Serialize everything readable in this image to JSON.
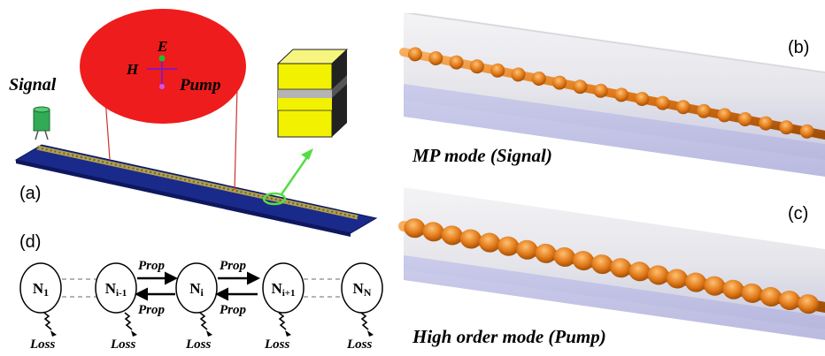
{
  "panel_a": {
    "label": "(a)",
    "signal_label": "Signal",
    "inset": {
      "e_label": "E",
      "h_label": "H",
      "pump_label": "Pump"
    }
  },
  "panel_b": {
    "label": "(b)",
    "caption": "MP mode (Signal)"
  },
  "panel_c": {
    "label": "(c)",
    "caption": "High order mode (Pump)"
  },
  "panel_d": {
    "label": "(d)",
    "prop_label": "Prop",
    "loss_label": "Loss",
    "nodes": [
      {
        "main": "N",
        "sub": "1"
      },
      {
        "main": "N",
        "sub": "i-1"
      },
      {
        "main": "N",
        "sub": "i"
      },
      {
        "main": "N",
        "sub": "i+1"
      },
      {
        "main": "N",
        "sub": "N"
      }
    ]
  },
  "colors": {
    "substrate": "#1a2a8a",
    "inset_disc": "#ee1c1c",
    "gold_layer": "#f2f200",
    "mode_orange": "#e8821e",
    "arrow_green": "#55dd44"
  }
}
